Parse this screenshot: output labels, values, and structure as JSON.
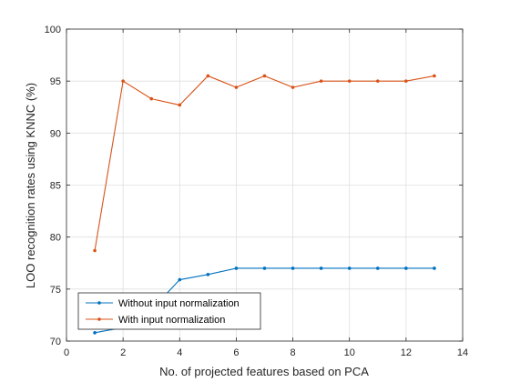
{
  "chart_data": {
    "type": "line",
    "title": "",
    "xlabel": "No. of projected features based on PCA",
    "ylabel": "LOO recognition rates using KNNC (%)",
    "xlim": [
      0,
      14
    ],
    "ylim": [
      70,
      100
    ],
    "xticks": [
      0,
      2,
      4,
      6,
      8,
      10,
      12,
      14
    ],
    "yticks": [
      70,
      75,
      80,
      85,
      90,
      95,
      100
    ],
    "grid": true,
    "legend_location": "bottom-left",
    "x": [
      1,
      2,
      3,
      4,
      5,
      6,
      7,
      8,
      9,
      10,
      11,
      12,
      13
    ],
    "series": [
      {
        "name": "Without input normalization",
        "color": "#0072BD",
        "marker": "dot",
        "values": [
          70.8,
          71.3,
          73.0,
          75.9,
          76.4,
          77.0,
          77.0,
          77.0,
          77.0,
          77.0,
          77.0,
          77.0,
          77.0
        ]
      },
      {
        "name": "With input normalization",
        "color": "#D95319",
        "marker": "dot",
        "values": [
          78.7,
          95.0,
          93.3,
          92.7,
          95.5,
          94.4,
          95.5,
          94.4,
          95.0,
          95.0,
          95.0,
          95.0,
          95.5
        ]
      }
    ]
  }
}
